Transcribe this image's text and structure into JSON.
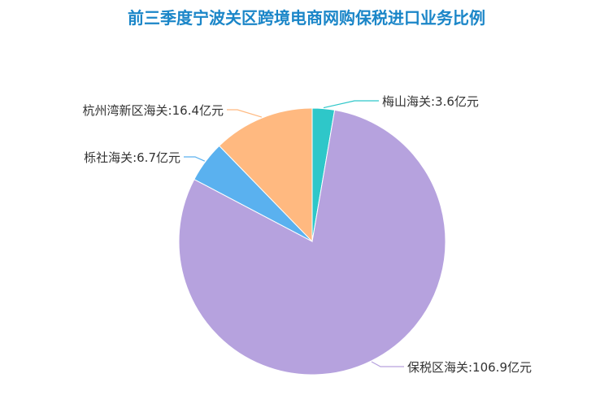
{
  "chart_data": {
    "type": "pie",
    "title": "前三季度宁波关区跨境电商网购保税进口业务比例",
    "slices": [
      {
        "name": "梅山海关",
        "value": 3.6,
        "label": "梅山海关:3.6亿元",
        "color": "#2ec7c9"
      },
      {
        "name": "保税区海关",
        "value": 106.9,
        "label": "保税区海关:106.9亿元",
        "color": "#b6a2de"
      },
      {
        "name": "栎社海关",
        "value": 6.7,
        "label": "栎社海关:6.7亿元",
        "color": "#5ab1ef"
      },
      {
        "name": "杭州湾新区海关",
        "value": 16.4,
        "label": "杭州湾新区海关:16.4亿元",
        "color": "#ffb980"
      }
    ]
  }
}
